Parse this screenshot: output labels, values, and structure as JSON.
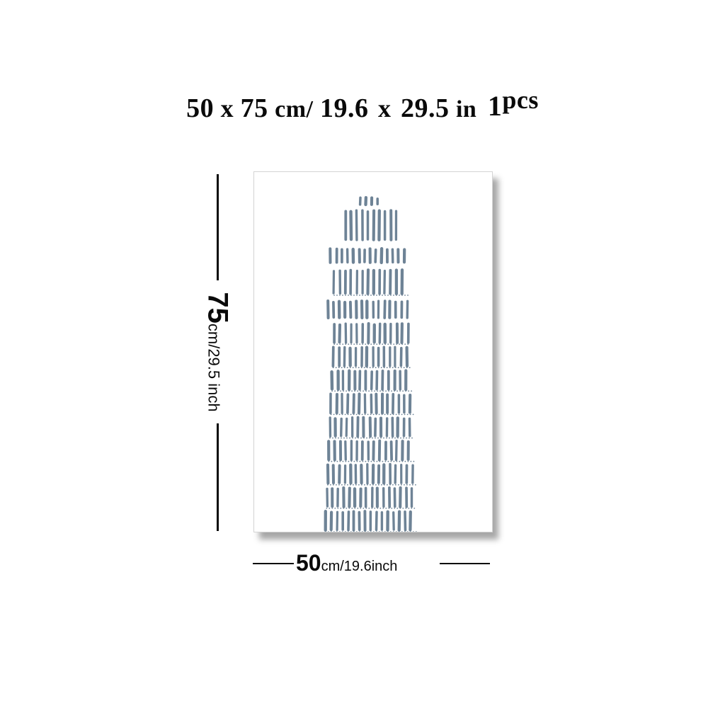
{
  "title": {
    "width_value": "50",
    "by1": "x",
    "height_value": "75",
    "unit_cm": "cm/",
    "width_in": "19.6",
    "by2": "x",
    "height_in": "29.5",
    "unit_in": "in",
    "quantity": "1",
    "quantity_unit": "pcs"
  },
  "height_dimension": {
    "value": "75",
    "unit_text": "cm/29.5 inch"
  },
  "width_dimension": {
    "value": "50",
    "unit_text": "cm/19.6inch"
  },
  "poster": {
    "artwork": "lighthouse-illustration",
    "stroke_color": "#6e8396",
    "background_color": "#ffffff"
  }
}
